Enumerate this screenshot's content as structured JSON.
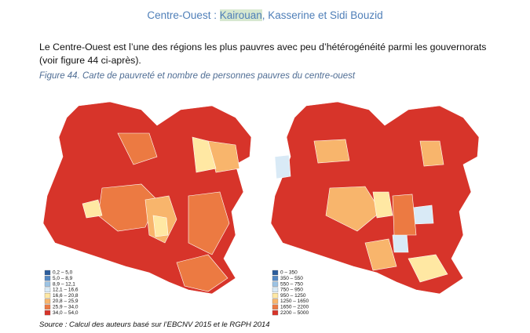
{
  "header": {
    "title_start": "Centre-Ouest : ",
    "title_highlight": "Kairouan",
    "title_end": ", Kasserine et Sidi Bouzid"
  },
  "paragraph": "Le Centre-Ouest est l’une des régions les plus pauvres avec peu d’hétérogénéité parmi les gouvernorats (voir figure 44 ci-après).",
  "figure": {
    "caption": "Figure 44. Carte de pauvreté et nombre de personnes pauvres du centre-ouest",
    "maps": [
      {
        "legend": [
          {
            "label": "0,2 – 5,0",
            "color": "#2c5d9c"
          },
          {
            "label": "5,0 – 8,9",
            "color": "#5288c4"
          },
          {
            "label": "8,9 – 12,1",
            "color": "#9cc3e4"
          },
          {
            "label": "12,1 – 16,6",
            "color": "#d9eaf6"
          },
          {
            "label": "16,6 – 20,8",
            "color": "#ffe8a3"
          },
          {
            "label": "20,8 – 25,9",
            "color": "#f8b56c"
          },
          {
            "label": "25,9 – 34,0",
            "color": "#ec7a42"
          },
          {
            "label": "34,0 – 54,0",
            "color": "#d7342a"
          }
        ]
      },
      {
        "legend": [
          {
            "label": "0 – 350",
            "color": "#2c5d9c"
          },
          {
            "label": "350 – 550",
            "color": "#5288c4"
          },
          {
            "label": "550 – 750",
            "color": "#9cc3e4"
          },
          {
            "label": "750 – 950",
            "color": "#d9eaf6"
          },
          {
            "label": "950 – 1250",
            "color": "#ffe8a3"
          },
          {
            "label": "1250 – 1650",
            "color": "#f8b56c"
          },
          {
            "label": "1650 – 2200",
            "color": "#ec7a42"
          },
          {
            "label": "2200 – 5000",
            "color": "#d7342a"
          }
        ]
      }
    ],
    "source": "Source : Calcul des auteurs basé sur l’EBCNV 2015 et le RGPH 2014"
  }
}
